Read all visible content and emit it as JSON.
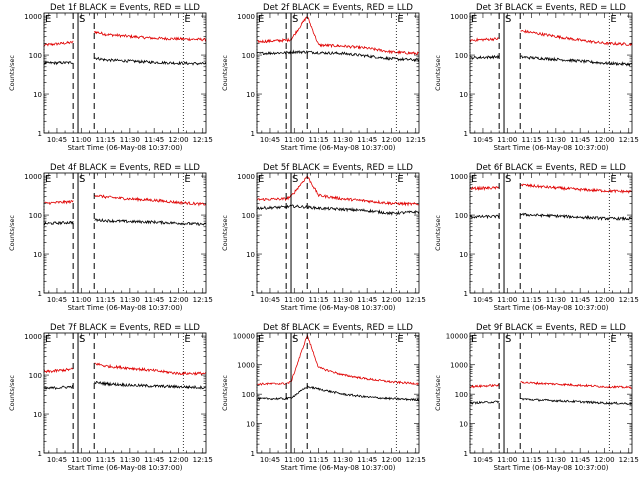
{
  "figure": {
    "colors": {
      "events": "#000000",
      "lld": "#e00000",
      "axes": "#000000",
      "background": "#ffffff"
    }
  },
  "chart_data": [
    {
      "type": "line",
      "title": "Det 1f BLACK = Events, RED = LLD",
      "xlabel": "Start Time (06-May-08 10:37:00)",
      "ylabel": "Counts/sec",
      "x_ticks": [
        "10:45",
        "11:00",
        "11:15",
        "11:30",
        "11:45",
        "12:00",
        "12:15"
      ],
      "y_ticks": [
        "1",
        "10",
        "100",
        "1000"
      ],
      "y_scale": "log",
      "ylim": [
        1,
        1200
      ],
      "markers": [
        {
          "label": "E",
          "time": "10:37",
          "style": "dotted"
        },
        {
          "label": "S",
          "time": "10:58",
          "style": "solid"
        },
        {
          "label": "E",
          "time": "12:03",
          "style": "dotted"
        }
      ],
      "dashed_lines": [
        "10:55",
        "11:08"
      ],
      "gap": [
        "10:55",
        "11:08"
      ],
      "series": [
        {
          "name": "LLD",
          "color": "#e00000",
          "x": [
            "10:37",
            "10:54",
            "11:08",
            "11:15",
            "11:30",
            "11:45",
            "12:00",
            "12:15"
          ],
          "y": [
            180,
            210,
            400,
            340,
            300,
            270,
            260,
            250
          ]
        },
        {
          "name": "Events",
          "color": "#000000",
          "x": [
            "10:37",
            "10:54",
            "11:08",
            "11:15",
            "11:30",
            "11:45",
            "12:00",
            "12:15"
          ],
          "y": [
            62,
            64,
            85,
            75,
            70,
            65,
            62,
            60
          ]
        }
      ]
    },
    {
      "type": "line",
      "title": "Det 2f BLACK = Events, RED = LLD",
      "xlabel": "Start Time (06-May-08 10:37:00)",
      "ylabel": "Counts/sec",
      "x_ticks": [
        "10:45",
        "11:00",
        "11:15",
        "11:30",
        "11:45",
        "12:00",
        "12:15"
      ],
      "y_ticks": [
        "1",
        "10",
        "100",
        "1000"
      ],
      "y_scale": "log",
      "ylim": [
        1,
        1200
      ],
      "markers": [
        {
          "label": "E",
          "time": "10:37",
          "style": "dotted"
        },
        {
          "label": "S",
          "time": "10:58",
          "style": "solid"
        },
        {
          "label": "E",
          "time": "12:03",
          "style": "dotted"
        }
      ],
      "dashed_lines": [
        "10:55",
        "11:08"
      ],
      "gap": null,
      "series": [
        {
          "name": "LLD",
          "color": "#e00000",
          "x": [
            "10:37",
            "10:55",
            "10:58",
            "11:08",
            "11:15",
            "11:30",
            "11:45",
            "12:00",
            "12:15"
          ],
          "y": [
            220,
            240,
            250,
            1000,
            180,
            170,
            150,
            120,
            110
          ]
        },
        {
          "name": "Events",
          "color": "#000000",
          "x": [
            "10:37",
            "10:55",
            "10:58",
            "11:08",
            "11:15",
            "11:30",
            "11:45",
            "12:00",
            "12:15"
          ],
          "y": [
            110,
            115,
            120,
            120,
            115,
            110,
            95,
            80,
            75
          ]
        }
      ]
    },
    {
      "type": "line",
      "title": "Det 3f BLACK = Events, RED = LLD",
      "xlabel": "Start Time (06-May-08 10:37:00)",
      "ylabel": "Counts/sec",
      "x_ticks": [
        "10:45",
        "11:00",
        "11:15",
        "11:30",
        "11:45",
        "12:00",
        "12:15"
      ],
      "y_ticks": [
        "1",
        "10",
        "100",
        "1000"
      ],
      "y_scale": "log",
      "ylim": [
        1,
        1200
      ],
      "markers": [
        {
          "label": "E",
          "time": "10:37",
          "style": "dotted"
        },
        {
          "label": "S",
          "time": "10:58",
          "style": "solid"
        },
        {
          "label": "E",
          "time": "12:03",
          "style": "dotted"
        }
      ],
      "dashed_lines": [
        "10:55",
        "11:08"
      ],
      "gap": [
        "10:55",
        "11:08"
      ],
      "series": [
        {
          "name": "LLD",
          "color": "#e00000",
          "x": [
            "10:37",
            "10:54",
            "11:08",
            "11:15",
            "11:30",
            "11:45",
            "12:00",
            "12:15"
          ],
          "y": [
            240,
            260,
            420,
            380,
            300,
            240,
            200,
            190
          ]
        },
        {
          "name": "Events",
          "color": "#000000",
          "x": [
            "10:37",
            "10:54",
            "11:08",
            "11:15",
            "11:30",
            "11:45",
            "12:00",
            "12:15"
          ],
          "y": [
            85,
            90,
            90,
            85,
            78,
            70,
            62,
            58
          ]
        }
      ]
    },
    {
      "type": "line",
      "title": "Det 4f BLACK = Events, RED = LLD",
      "xlabel": "Start Time (06-May-08 10:37:00)",
      "ylabel": "Counts/sec",
      "x_ticks": [
        "10:45",
        "11:00",
        "11:15",
        "11:30",
        "11:45",
        "12:00",
        "12:15"
      ],
      "y_ticks": [
        "1",
        "10",
        "100",
        "1000"
      ],
      "y_scale": "log",
      "ylim": [
        1,
        1200
      ],
      "markers": [
        {
          "label": "E",
          "time": "10:37",
          "style": "dotted"
        },
        {
          "label": "S",
          "time": "10:58",
          "style": "solid"
        },
        {
          "label": "E",
          "time": "12:03",
          "style": "dotted"
        }
      ],
      "dashed_lines": [
        "10:55",
        "11:08"
      ],
      "gap": [
        "10:55",
        "11:08"
      ],
      "series": [
        {
          "name": "LLD",
          "color": "#e00000",
          "x": [
            "10:37",
            "10:54",
            "11:08",
            "11:15",
            "11:30",
            "11:45",
            "12:00",
            "12:15"
          ],
          "y": [
            200,
            220,
            330,
            290,
            260,
            240,
            210,
            190
          ]
        },
        {
          "name": "Events",
          "color": "#000000",
          "x": [
            "10:37",
            "10:54",
            "11:08",
            "11:15",
            "11:30",
            "11:45",
            "12:00",
            "12:15"
          ],
          "y": [
            60,
            65,
            75,
            72,
            68,
            66,
            62,
            58
          ]
        }
      ]
    },
    {
      "type": "line",
      "title": "Det 5f BLACK = Events, RED = LLD",
      "xlabel": "Start Time (06-May-08 10:37:00)",
      "ylabel": "Counts/sec",
      "x_ticks": [
        "10:45",
        "11:00",
        "11:15",
        "11:30",
        "11:45",
        "12:00",
        "12:15"
      ],
      "y_ticks": [
        "1",
        "10",
        "100",
        "1000"
      ],
      "y_scale": "log",
      "ylim": [
        1,
        1200
      ],
      "markers": [
        {
          "label": "E",
          "time": "10:37",
          "style": "dotted"
        },
        {
          "label": "S",
          "time": "10:58",
          "style": "solid"
        },
        {
          "label": "E",
          "time": "12:03",
          "style": "dotted"
        }
      ],
      "dashed_lines": [
        "10:55",
        "11:08"
      ],
      "gap": null,
      "series": [
        {
          "name": "LLD",
          "color": "#e00000",
          "x": [
            "10:37",
            "10:55",
            "10:58",
            "11:08",
            "11:15",
            "11:30",
            "11:45",
            "12:00",
            "12:15"
          ],
          "y": [
            250,
            260,
            300,
            1000,
            320,
            260,
            230,
            200,
            190
          ]
        },
        {
          "name": "Events",
          "color": "#000000",
          "x": [
            "10:37",
            "10:55",
            "10:58",
            "11:08",
            "11:15",
            "11:30",
            "11:45",
            "12:00",
            "12:15"
          ],
          "y": [
            150,
            160,
            170,
            160,
            150,
            140,
            130,
            110,
            120
          ]
        }
      ]
    },
    {
      "type": "line",
      "title": "Det 6f BLACK = Events, RED = LLD",
      "xlabel": "Start Time (06-May-08 10:37:00)",
      "ylabel": "Counts/sec",
      "x_ticks": [
        "10:45",
        "11:00",
        "11:15",
        "11:30",
        "11:45",
        "12:00",
        "12:15"
      ],
      "y_ticks": [
        "1",
        "10",
        "100",
        "1000"
      ],
      "y_scale": "log",
      "ylim": [
        1,
        1200
      ],
      "markers": [
        {
          "label": "E",
          "time": "10:37",
          "style": "dotted"
        },
        {
          "label": "S",
          "time": "10:58",
          "style": "solid"
        },
        {
          "label": "E",
          "time": "12:03",
          "style": "dotted"
        }
      ],
      "dashed_lines": [
        "10:55",
        "11:08"
      ],
      "gap": [
        "10:55",
        "11:08"
      ],
      "series": [
        {
          "name": "LLD",
          "color": "#e00000",
          "x": [
            "10:37",
            "10:54",
            "11:08",
            "11:15",
            "11:30",
            "11:45",
            "12:00",
            "12:15"
          ],
          "y": [
            480,
            500,
            600,
            560,
            500,
            450,
            420,
            400
          ]
        },
        {
          "name": "Events",
          "color": "#000000",
          "x": [
            "10:37",
            "10:54",
            "11:08",
            "11:15",
            "11:30",
            "11:45",
            "12:00",
            "12:15"
          ],
          "y": [
            90,
            92,
            105,
            100,
            95,
            88,
            82,
            80
          ]
        }
      ]
    },
    {
      "type": "line",
      "title": "Det 7f BLACK = Events, RED = LLD",
      "xlabel": "Start Time (06-May-08 10:37:00)",
      "ylabel": "Counts/sec",
      "x_ticks": [
        "10:45",
        "11:00",
        "11:15",
        "11:30",
        "11:45",
        "12:00",
        "12:15"
      ],
      "y_ticks": [
        "1",
        "10",
        "100",
        "1000"
      ],
      "y_scale": "log",
      "ylim": [
        1,
        1200
      ],
      "markers": [
        {
          "label": "E",
          "time": "10:37",
          "style": "dotted"
        },
        {
          "label": "S",
          "time": "10:58",
          "style": "solid"
        },
        {
          "label": "E",
          "time": "12:03",
          "style": "dotted"
        }
      ],
      "dashed_lines": [
        "10:55",
        "11:08"
      ],
      "gap": [
        "10:55",
        "11:08"
      ],
      "series": [
        {
          "name": "LLD",
          "color": "#e00000",
          "x": [
            "10:37",
            "10:54",
            "11:08",
            "11:15",
            "11:30",
            "11:45",
            "12:00",
            "12:15"
          ],
          "y": [
            120,
            140,
            200,
            170,
            150,
            130,
            110,
            110
          ]
        },
        {
          "name": "Events",
          "color": "#000000",
          "x": [
            "10:37",
            "10:54",
            "11:08",
            "11:15",
            "11:30",
            "11:45",
            "12:00",
            "12:15"
          ],
          "y": [
            45,
            50,
            65,
            60,
            55,
            52,
            50,
            48
          ]
        }
      ]
    },
    {
      "type": "line",
      "title": "Det 8f BLACK = Events, RED = LLD",
      "xlabel": "Start Time (06-May-08 10:37:00)",
      "ylabel": "Counts/sec",
      "x_ticks": [
        "10:45",
        "11:00",
        "11:15",
        "11:30",
        "11:45",
        "12:00",
        "12:15"
      ],
      "y_ticks": [
        "1",
        "10",
        "100",
        "1000",
        "10000"
      ],
      "y_scale": "log",
      "ylim": [
        1,
        12000
      ],
      "markers": [
        {
          "label": "E",
          "time": "10:37",
          "style": "dotted"
        },
        {
          "label": "S",
          "time": "10:58",
          "style": "solid"
        },
        {
          "label": "E",
          "time": "12:03",
          "style": "dotted"
        }
      ],
      "dashed_lines": [
        "10:55",
        "11:08"
      ],
      "gap": null,
      "series": [
        {
          "name": "LLD",
          "color": "#e00000",
          "x": [
            "10:37",
            "10:55",
            "10:58",
            "11:08",
            "11:15",
            "11:30",
            "11:45",
            "12:00",
            "12:15"
          ],
          "y": [
            220,
            230,
            260,
            10000,
            800,
            450,
            330,
            260,
            230
          ]
        },
        {
          "name": "Events",
          "color": "#000000",
          "x": [
            "10:37",
            "10:55",
            "10:58",
            "11:08",
            "11:15",
            "11:30",
            "11:45",
            "12:00",
            "12:15"
          ],
          "y": [
            70,
            70,
            75,
            180,
            150,
            100,
            80,
            70,
            65
          ]
        }
      ]
    },
    {
      "type": "line",
      "title": "Det 9f BLACK = Events, RED = LLD",
      "xlabel": "Start Time (06-May-08 10:37:00)",
      "ylabel": "Counts/sec",
      "x_ticks": [
        "10:45",
        "11:00",
        "11:15",
        "11:30",
        "11:45",
        "12:00",
        "12:15"
      ],
      "y_ticks": [
        "1",
        "10",
        "100",
        "1000",
        "10000"
      ],
      "y_scale": "log",
      "ylim": [
        1,
        12000
      ],
      "markers": [
        {
          "label": "E",
          "time": "10:37",
          "style": "dotted"
        },
        {
          "label": "S",
          "time": "10:58",
          "style": "solid"
        },
        {
          "label": "E",
          "time": "12:03",
          "style": "dotted"
        }
      ],
      "dashed_lines": [
        "10:55",
        "11:08"
      ],
      "gap": [
        "10:55",
        "11:08"
      ],
      "series": [
        {
          "name": "LLD",
          "color": "#e00000",
          "x": [
            "10:37",
            "10:54",
            "11:08",
            "11:15",
            "11:30",
            "11:45",
            "12:00",
            "12:15"
          ],
          "y": [
            180,
            200,
            260,
            240,
            220,
            200,
            180,
            170
          ]
        },
        {
          "name": "Events",
          "color": "#000000",
          "x": [
            "10:37",
            "10:54",
            "11:08",
            "11:15",
            "11:30",
            "11:45",
            "12:00",
            "12:15"
          ],
          "y": [
            50,
            55,
            70,
            65,
            60,
            55,
            50,
            48
          ]
        }
      ]
    }
  ]
}
